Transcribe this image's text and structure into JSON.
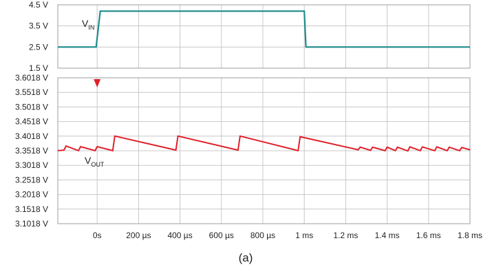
{
  "caption": "(a)",
  "chart_data": [
    {
      "type": "line",
      "title": "",
      "xlabel": "",
      "ylabel": "",
      "x_unit": "ms",
      "y_unit": "V",
      "xlim": [
        -0.19,
        1.8
      ],
      "ylim": [
        1.5,
        4.5
      ],
      "grid": true,
      "y_ticks": [
        "4.5 V",
        "3.5 V",
        "2.5 V",
        "1.5 V"
      ],
      "y_tick_values": [
        4.5,
        3.5,
        2.5,
        1.5
      ],
      "signal_label": {
        "main": "V",
        "sub": "IN"
      },
      "color": "#1f8a8a",
      "series": [
        {
          "name": "VIN",
          "points": [
            [
              -0.19,
              2.5
            ],
            [
              -0.005,
              2.5
            ],
            [
              0.015,
              4.2
            ],
            [
              1.0,
              4.2
            ],
            [
              1.008,
              2.5
            ],
            [
              1.8,
              2.5
            ]
          ]
        }
      ]
    },
    {
      "type": "line",
      "title": "",
      "xlabel": "",
      "ylabel": "",
      "x_unit": "ms",
      "y_unit": "V",
      "xlim": [
        -0.19,
        1.8
      ],
      "ylim": [
        3.1018,
        3.6018
      ],
      "grid": true,
      "x_ticks": [
        "0s",
        "200 µs",
        "400 µs",
        "600 µs",
        "800 µs",
        "1 ms",
        "1.2 ms",
        "1.4 ms",
        "1.6 ms",
        "1.8 ms"
      ],
      "x_tick_values": [
        0,
        0.2,
        0.4,
        0.6,
        0.8,
        1.0,
        1.2,
        1.4,
        1.6,
        1.8
      ],
      "y_ticks": [
        "3.6018 V",
        "3.5518 V",
        "3.5018 V",
        "3.4518 V",
        "3.4018 V",
        "3.3518 V",
        "3.3018 V",
        "3.2518 V",
        "3.2018 V",
        "3.1518 V",
        "3.1018 V"
      ],
      "y_tick_values": [
        3.6018,
        3.5518,
        3.5018,
        3.4518,
        3.4018,
        3.3518,
        3.3018,
        3.2518,
        3.2018,
        3.1518,
        3.1018
      ],
      "signal_label": {
        "main": "V",
        "sub": "OUT"
      },
      "color": "#e0202a",
      "trigger_marker": {
        "x": 0,
        "color": "#e0202a"
      },
      "series": [
        {
          "name": "VOUT",
          "points": [
            [
              -0.19,
              3.352
            ],
            [
              -0.16,
              3.354
            ],
            [
              -0.15,
              3.368
            ],
            [
              -0.09,
              3.352
            ],
            [
              -0.08,
              3.366
            ],
            [
              -0.01,
              3.352
            ],
            [
              0.0,
              3.366
            ],
            [
              0.075,
              3.352
            ],
            [
              0.085,
              3.402
            ],
            [
              0.38,
              3.354
            ],
            [
              0.39,
              3.402
            ],
            [
              0.68,
              3.354
            ],
            [
              0.69,
              3.402
            ],
            [
              0.97,
              3.352
            ],
            [
              0.98,
              3.4
            ],
            [
              1.26,
              3.355
            ],
            [
              1.27,
              3.364
            ],
            [
              1.32,
              3.353
            ],
            [
              1.33,
              3.364
            ],
            [
              1.39,
              3.352
            ],
            [
              1.4,
              3.364
            ],
            [
              1.44,
              3.352
            ],
            [
              1.45,
              3.364
            ],
            [
              1.5,
              3.351
            ],
            [
              1.51,
              3.365
            ],
            [
              1.56,
              3.352
            ],
            [
              1.57,
              3.365
            ],
            [
              1.63,
              3.352
            ],
            [
              1.64,
              3.365
            ],
            [
              1.69,
              3.352
            ],
            [
              1.7,
              3.364
            ],
            [
              1.75,
              3.352
            ],
            [
              1.76,
              3.363
            ],
            [
              1.8,
              3.355
            ]
          ]
        }
      ]
    }
  ]
}
